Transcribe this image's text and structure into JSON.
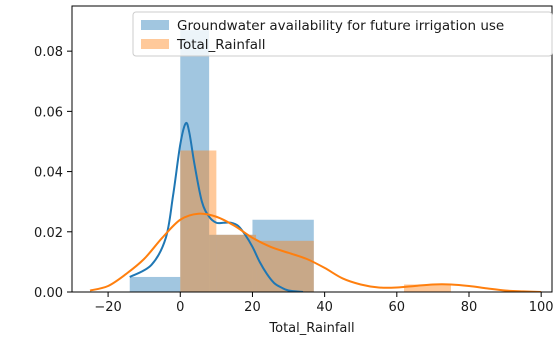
{
  "chart_data": {
    "type": "bar",
    "title": "",
    "xlabel": "Total_Rainfall",
    "ylabel": "",
    "xlim": [
      -30,
      103
    ],
    "ylim": [
      0,
      0.095
    ],
    "xticks": [
      -20,
      0,
      20,
      40,
      60,
      80,
      100
    ],
    "xtick_labels": [
      "−20",
      "0",
      "20",
      "40",
      "60",
      "80",
      "100"
    ],
    "yticks": [
      0.0,
      0.02,
      0.04,
      0.06,
      0.08
    ],
    "ytick_labels": [
      "0.00",
      "0.02",
      "0.04",
      "0.06",
      "0.08"
    ],
    "grid": false,
    "legend_position": "top-right",
    "series": [
      {
        "name": "Groundwater availability for future irrigation use",
        "color": "#1f77b4",
        "histogram": {
          "bins": [
            [
              -14,
              0
            ],
            [
              0,
              8
            ],
            [
              8,
              20
            ],
            [
              20,
              37
            ]
          ],
          "heights": [
            0.005,
            0.087,
            0.019,
            0.024
          ]
        },
        "kde": {
          "x": [
            -14,
            -8,
            -4,
            -2,
            0,
            1.5,
            2.5,
            4,
            6,
            8,
            10,
            12,
            14,
            16,
            18,
            20,
            22,
            24,
            26,
            28,
            30,
            34
          ],
          "y": [
            0.005,
            0.009,
            0.018,
            0.032,
            0.049,
            0.056,
            0.053,
            0.042,
            0.03,
            0.025,
            0.023,
            0.023,
            0.023,
            0.022,
            0.019,
            0.015,
            0.01,
            0.006,
            0.003,
            0.0015,
            0.0005,
            0.0
          ]
        }
      },
      {
        "name": "Total_Rainfall",
        "color": "#ff7f0e",
        "histogram": {
          "bins": [
            [
              0,
              10
            ],
            [
              10,
              21
            ],
            [
              21,
              37
            ],
            [
              62,
              75
            ]
          ],
          "heights": [
            0.047,
            0.019,
            0.017,
            0.0025
          ]
        },
        "kde": {
          "x": [
            -25,
            -20,
            -15,
            -10,
            -5,
            0,
            5,
            10,
            15,
            20,
            25,
            30,
            35,
            40,
            45,
            50,
            55,
            60,
            65,
            70,
            75,
            80,
            85,
            90,
            95,
            100
          ],
          "y": [
            0.0005,
            0.002,
            0.006,
            0.011,
            0.018,
            0.024,
            0.026,
            0.025,
            0.022,
            0.018,
            0.015,
            0.013,
            0.011,
            0.008,
            0.0045,
            0.0025,
            0.0015,
            0.0015,
            0.002,
            0.0025,
            0.0025,
            0.002,
            0.0012,
            0.0005,
            0.0002,
            0.0
          ]
        }
      }
    ]
  }
}
